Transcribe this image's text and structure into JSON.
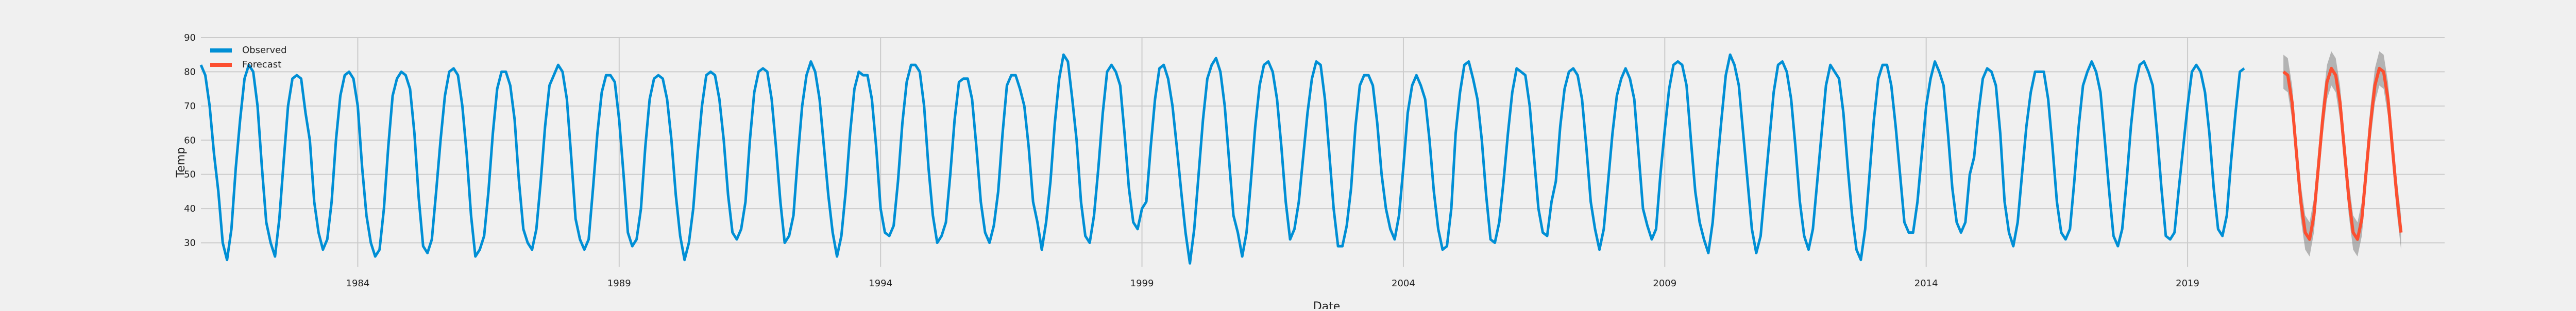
{
  "chart_data": {
    "type": "line",
    "title": "",
    "xlabel": "Date",
    "ylabel": "Temp",
    "x_start": "1981-01",
    "x_end": "2023-12",
    "ylim": [
      23,
      90
    ],
    "yticks": [
      30,
      40,
      50,
      60,
      70,
      80,
      90
    ],
    "xtick_labels": [
      "1984",
      "1989",
      "1994",
      "1999",
      "2004",
      "2009",
      "2014",
      "2019"
    ],
    "grid": true,
    "legend_position": "top-left",
    "legend": [
      "Observed",
      "Forecast"
    ],
    "colors": {
      "observed": "#008fd5",
      "forecast": "#fc4f30",
      "band": "#8b8b8b",
      "background": "#f0f0f0",
      "grid": "#cbcbcb"
    },
    "series": [
      {
        "name": "Observed",
        "start": "1981-01",
        "values": [
          82,
          79,
          70,
          56,
          45,
          30,
          25,
          34,
          52,
          66,
          78,
          82,
          80,
          70,
          52,
          36,
          30,
          26,
          37,
          54,
          70,
          78,
          79,
          78,
          68,
          60,
          42,
          33,
          28,
          31,
          42,
          60,
          73,
          79,
          80,
          78,
          70,
          52,
          38,
          30,
          26,
          28,
          40,
          58,
          73,
          78,
          80,
          79,
          75,
          62,
          43,
          29,
          27,
          31,
          45,
          60,
          73,
          80,
          81,
          79,
          70,
          56,
          38,
          26,
          28,
          32,
          45,
          62,
          75,
          80,
          80,
          76,
          66,
          48,
          34,
          30,
          28,
          34,
          48,
          64,
          76,
          79,
          82,
          80,
          72,
          55,
          37,
          31,
          28,
          31,
          46,
          62,
          74,
          79,
          79,
          77,
          66,
          50,
          33,
          29,
          31,
          40,
          58,
          72,
          78,
          79,
          78,
          72,
          60,
          44,
          32,
          25,
          30,
          40,
          56,
          70,
          79,
          80,
          79,
          72,
          60,
          44,
          33,
          31,
          34,
          42,
          60,
          74,
          80,
          81,
          80,
          72,
          58,
          42,
          30,
          32,
          38,
          55,
          70,
          79,
          83,
          80,
          72,
          58,
          44,
          33,
          26,
          32,
          45,
          62,
          75,
          80,
          79,
          79,
          72,
          58,
          40,
          33,
          32,
          35,
          48,
          65,
          77,
          82,
          82,
          80,
          70,
          52,
          38,
          30,
          32,
          36,
          50,
          66,
          77,
          78,
          78,
          72,
          58,
          42,
          33,
          30,
          35,
          45,
          62,
          76,
          79,
          79,
          75,
          70,
          58,
          42,
          36,
          28,
          36,
          48,
          65,
          78,
          85,
          83,
          72,
          60,
          42,
          32,
          30,
          38,
          52,
          68,
          80,
          82,
          80,
          76,
          62,
          46,
          36,
          34,
          40,
          42,
          58,
          72,
          81,
          82,
          78,
          70,
          58,
          45,
          33,
          24,
          34,
          50,
          66,
          78,
          82,
          84,
          80,
          70,
          54,
          38,
          33,
          26,
          33,
          48,
          64,
          76,
          82,
          83,
          80,
          72,
          58,
          42,
          31,
          34,
          42,
          55,
          68,
          78,
          83,
          82,
          72,
          56,
          40,
          29,
          29,
          35,
          46,
          64,
          76,
          79,
          79,
          76,
          65,
          50,
          40,
          34,
          31,
          38,
          52,
          68,
          76,
          79,
          76,
          72,
          60,
          45,
          34,
          28,
          29,
          40,
          62,
          74,
          82,
          83,
          78,
          72,
          60,
          44,
          31,
          30,
          36,
          48,
          62,
          74,
          81,
          80,
          79,
          70,
          55,
          40,
          33,
          32,
          42,
          48,
          64,
          75,
          80,
          81,
          79,
          72,
          58,
          42,
          34,
          28,
          34,
          48,
          62,
          73,
          78,
          81,
          78,
          72,
          56,
          40,
          35,
          31,
          34,
          50,
          63,
          75,
          82,
          83,
          82,
          76,
          60,
          45,
          36,
          31,
          27,
          36,
          52,
          66,
          79,
          85,
          82,
          76,
          62,
          48,
          34,
          27,
          32,
          46,
          60,
          74,
          82,
          83,
          80,
          72,
          58,
          42,
          32,
          28,
          34,
          48,
          62,
          76,
          82,
          80,
          78,
          68,
          52,
          38,
          28,
          25,
          34,
          50,
          66,
          78,
          82,
          82,
          76,
          64,
          50,
          36,
          33,
          33,
          42,
          56,
          70,
          78,
          83,
          80,
          76,
          62,
          46,
          36,
          33,
          36,
          50,
          55,
          68,
          78,
          81,
          80,
          76,
          62,
          42,
          33,
          29,
          36,
          50,
          64,
          74,
          80,
          80,
          80,
          72,
          58,
          42,
          33,
          31,
          34,
          48,
          64,
          76,
          80,
          83,
          80,
          74,
          60,
          45,
          32,
          29,
          34,
          48,
          64,
          76,
          82,
          83,
          80,
          76,
          62,
          46,
          32,
          31,
          33,
          46,
          58,
          70,
          80,
          82,
          80,
          74,
          62,
          46,
          34,
          32,
          38,
          54,
          68,
          80,
          81
        ]
      },
      {
        "name": "Forecast",
        "start": "2020-11",
        "values": [
          80,
          79,
          71,
          56,
          42,
          33,
          31,
          38,
          52,
          66,
          77,
          81,
          79,
          71,
          57,
          43,
          33,
          31,
          37,
          51,
          65,
          76,
          81,
          80,
          72,
          58,
          44,
          33
        ],
        "lower": [
          75,
          74,
          66,
          51,
          37,
          28,
          26,
          33,
          47,
          61,
          72,
          76,
          74,
          66,
          52,
          38,
          28,
          26,
          32,
          46,
          60,
          71,
          76,
          75,
          67,
          53,
          39,
          28
        ],
        "upper": [
          85,
          84,
          76,
          61,
          47,
          38,
          36,
          43,
          57,
          71,
          82,
          86,
          84,
          76,
          62,
          48,
          38,
          36,
          42,
          56,
          70,
          81,
          86,
          85,
          77,
          63,
          49,
          38
        ]
      }
    ]
  }
}
